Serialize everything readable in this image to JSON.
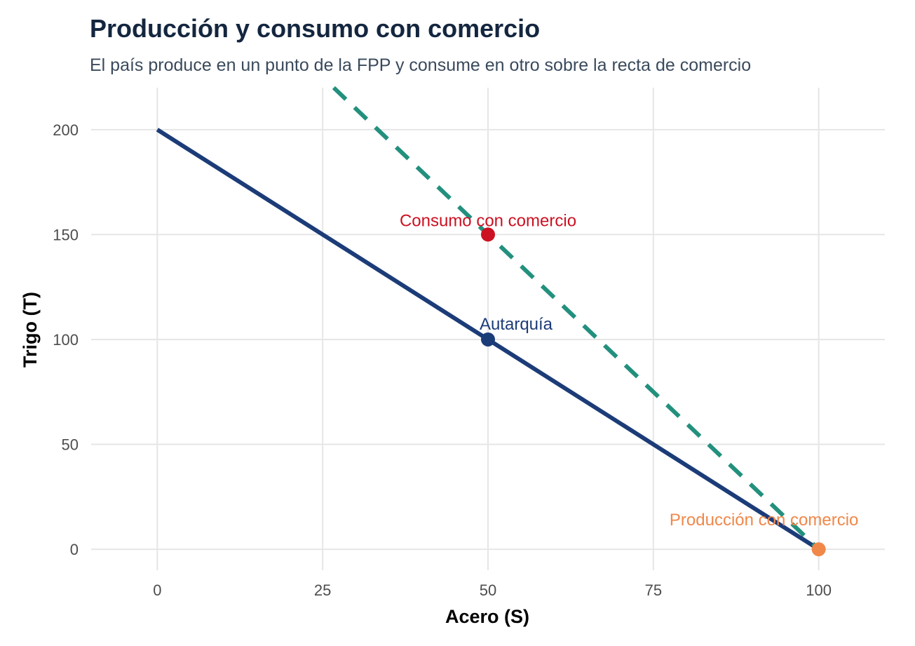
{
  "chart_data": {
    "type": "line",
    "title": "Producción y consumo con comercio",
    "subtitle": "El país produce en un punto de la FPP y consume en otro sobre la recta de comercio",
    "xlabel": "Acero (S)",
    "ylabel": "Trigo (T)",
    "xlim": [
      -10,
      110
    ],
    "ylim": [
      -10,
      220
    ],
    "x_ticks": [
      0,
      25,
      50,
      75,
      100
    ],
    "y_ticks": [
      0,
      50,
      100,
      150,
      200
    ],
    "grid": true,
    "legend": "none",
    "series": [
      {
        "style": "solid",
        "color": "#1c3c78",
        "points": [
          [
            0,
            200
          ],
          [
            100,
            0
          ]
        ]
      },
      {
        "style": "dashed",
        "color": "#23907e",
        "points": [
          [
            26.67,
            220
          ],
          [
            100,
            0
          ]
        ]
      }
    ],
    "points": [
      {
        "x": 50,
        "y": 150,
        "label": "Consumo con comercio",
        "color": "#cc1122"
      },
      {
        "x": 50,
        "y": 100,
        "label": "Autarquía",
        "color": "#1c3c78"
      },
      {
        "x": 100,
        "y": 0,
        "label": "Producción con comercio",
        "color": "#f0884a"
      }
    ],
    "colors": {
      "grid": "#e6e6e6",
      "title": "#14263f",
      "subtitle": "#3a4a5c"
    }
  }
}
